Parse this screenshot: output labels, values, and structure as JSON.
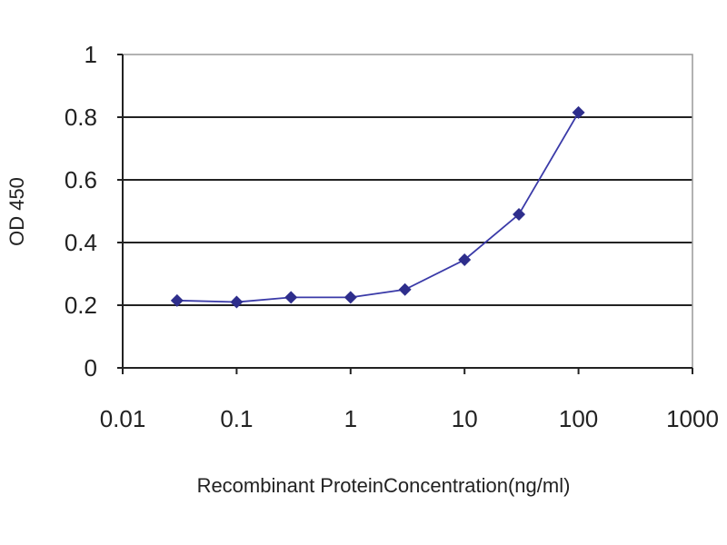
{
  "chart_data": {
    "type": "line",
    "title": "",
    "xlabel": "Recombinant ProteinConcentration(ng/ml)",
    "ylabel": "OD 450",
    "x_scale": "log",
    "xlim": [
      0.01,
      1000
    ],
    "ylim": [
      0,
      1
    ],
    "x_ticks": [
      "0.01",
      "0.1",
      "1",
      "10",
      "100",
      "1000"
    ],
    "y_ticks": [
      "0",
      "0.2",
      "0.4",
      "0.6",
      "0.8",
      "1"
    ],
    "grid": "horizontal",
    "legend": "none",
    "series": [
      {
        "x": [
          0.03,
          0.1,
          0.3,
          1,
          3,
          10,
          30,
          100
        ],
        "y": [
          0.215,
          0.21,
          0.225,
          0.225,
          0.25,
          0.345,
          0.49,
          0.815
        ],
        "color": "#2e2e8c",
        "marker": "diamond"
      }
    ]
  }
}
